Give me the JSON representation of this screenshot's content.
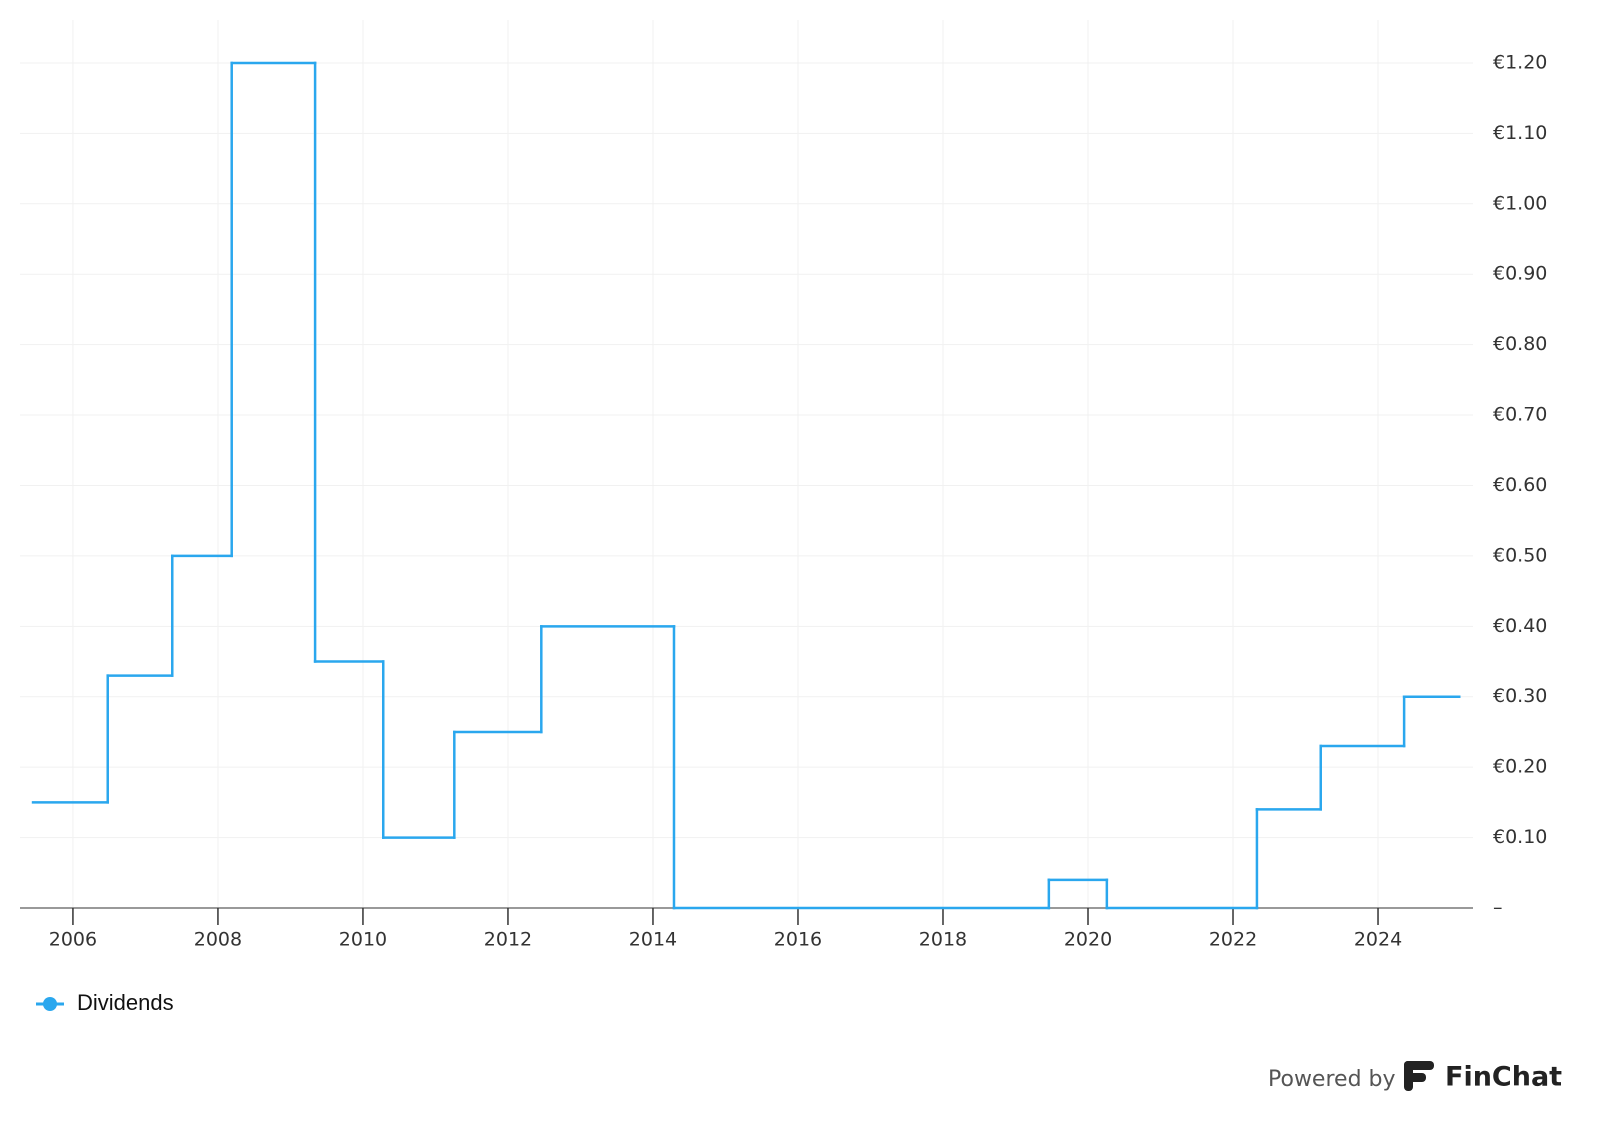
{
  "chart_data": {
    "type": "line",
    "step": "after",
    "x": [
      2005.45,
      2006.48,
      2007.37,
      2008.19,
      2009.34,
      2010.28,
      2011.26,
      2012.46,
      2014.29,
      2019.46,
      2020.26,
      2022.33,
      2023.21,
      2024.36,
      2025.12
    ],
    "series": [
      {
        "name": "Dividends",
        "color": "#2aa7ee",
        "values": [
          0.15,
          0.33,
          0.5,
          1.2,
          0.35,
          0.1,
          0.25,
          0.4,
          0,
          0.04,
          0,
          0.14,
          0.23,
          0.3,
          0.3
        ]
      }
    ],
    "xlim": [
      2005.27,
      2025.31
    ],
    "xticks": [
      2006,
      2008,
      2010,
      2012,
      2014,
      2016,
      2018,
      2020,
      2022,
      2024
    ],
    "ylim": [
      0,
      1.261
    ],
    "yticks": [
      {
        "value": 0,
        "label": "–"
      },
      {
        "value": 0.1,
        "label": "€0.10"
      },
      {
        "value": 0.2,
        "label": "€0.20"
      },
      {
        "value": 0.3,
        "label": "€0.30"
      },
      {
        "value": 0.4,
        "label": "€0.40"
      },
      {
        "value": 0.5,
        "label": "€0.50"
      },
      {
        "value": 0.6,
        "label": "€0.60"
      },
      {
        "value": 0.7,
        "label": "€0.70"
      },
      {
        "value": 0.8,
        "label": "€0.80"
      },
      {
        "value": 0.9,
        "label": "€0.90"
      },
      {
        "value": 1.0,
        "label": "€1.00"
      },
      {
        "value": 1.1,
        "label": "€1.10"
      },
      {
        "value": 1.2,
        "label": "€1.20"
      }
    ],
    "grid": true,
    "legend": "bottom-left"
  },
  "footer": {
    "powered_by": "Powered by",
    "brand": "FinChat"
  }
}
